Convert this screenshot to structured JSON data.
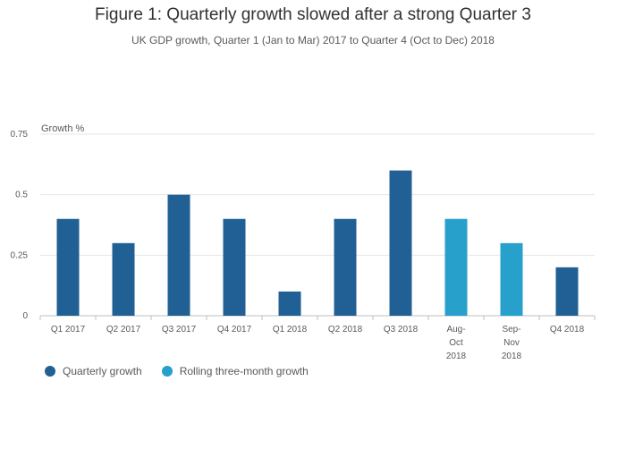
{
  "title": "Figure 1: Quarterly growth slowed after a strong Quarter 3",
  "subtitle": "UK GDP growth, Quarter 1 (Jan to Mar) 2017 to Quarter 4 (Oct to Dec) 2018",
  "colors": {
    "quarterly": "#206095",
    "rolling": "#27a0cc",
    "grid": "#e6e6e6",
    "axis": "#bfbfbf"
  },
  "chart_data": {
    "type": "bar",
    "ylabel": "Growth %",
    "ylim": [
      0,
      0.75
    ],
    "yticks": [
      "0",
      "0.25",
      "0.5",
      "0.75"
    ],
    "categories": [
      [
        "Q1 2017"
      ],
      [
        "Q2 2017"
      ],
      [
        "Q3 2017"
      ],
      [
        "Q4 2017"
      ],
      [
        "Q1 2018"
      ],
      [
        "Q2 2018"
      ],
      [
        "Q3 2018"
      ],
      [
        "Aug-",
        "Oct",
        "2018"
      ],
      [
        "Sep-",
        "Nov",
        "2018"
      ],
      [
        "Q4 2018"
      ]
    ],
    "series": [
      {
        "name": "Quarterly growth",
        "values": [
          0.4,
          0.3,
          0.5,
          0.4,
          0.1,
          0.4,
          0.6,
          null,
          null,
          0.2
        ]
      },
      {
        "name": "Rolling three-month growth",
        "values": [
          null,
          null,
          null,
          null,
          null,
          null,
          null,
          0.4,
          0.3,
          null
        ]
      }
    ],
    "legend_position": "bottom-left",
    "grid": true
  }
}
